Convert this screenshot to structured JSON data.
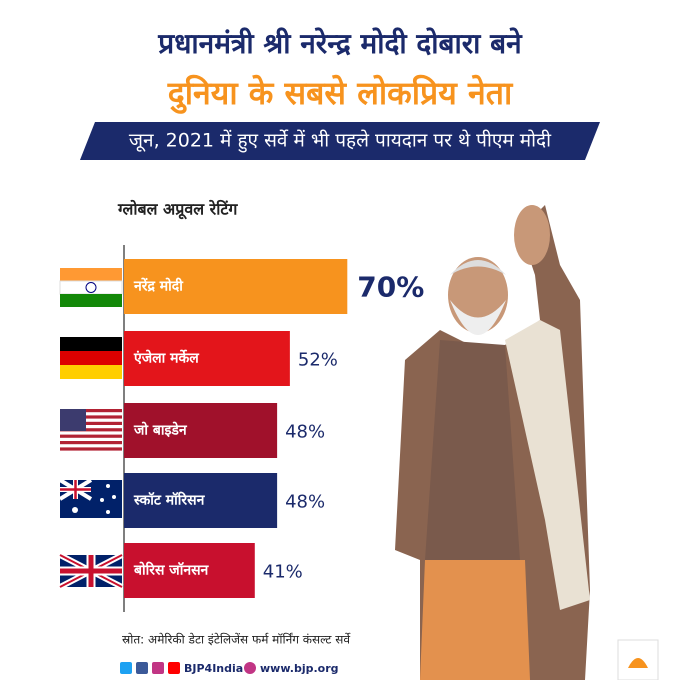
{
  "chart_data": {
    "type": "bar",
    "title": "प्रधानमंत्री श्री नरेन्द्र मोदी दोबारा बने",
    "title_line2": "दुनिया के सबसे लोकप्रिय नेता",
    "subtitle": "जून, 2021 में हुए सर्वे में भी पहले पायदान पर थे पीएम मोदी",
    "axis_label": "ग्लोबल अप्रूवल रेटिंग",
    "categories": [
      "नरेंद्र मोदी",
      "एंजेला मर्केल",
      "जो बाइडेन",
      "स्कॉट मॉरिसन",
      "बोरिस जॉनसन"
    ],
    "values": [
      70,
      52,
      48,
      48,
      41
    ],
    "value_labels": [
      "70%",
      "52%",
      "48%",
      "48%",
      "41%"
    ],
    "colors": [
      "#f7931e",
      "#e3151b",
      "#a0112b",
      "#1b2a6b",
      "#c8102e"
    ],
    "source": "स्रोत: अमेरिकी डेटा इंटेलिजेंस फर्म मॉर्निंग कंसल्ट सर्वे",
    "footer_handle": "BJP4India",
    "footer_site": "www.bjp.org"
  }
}
